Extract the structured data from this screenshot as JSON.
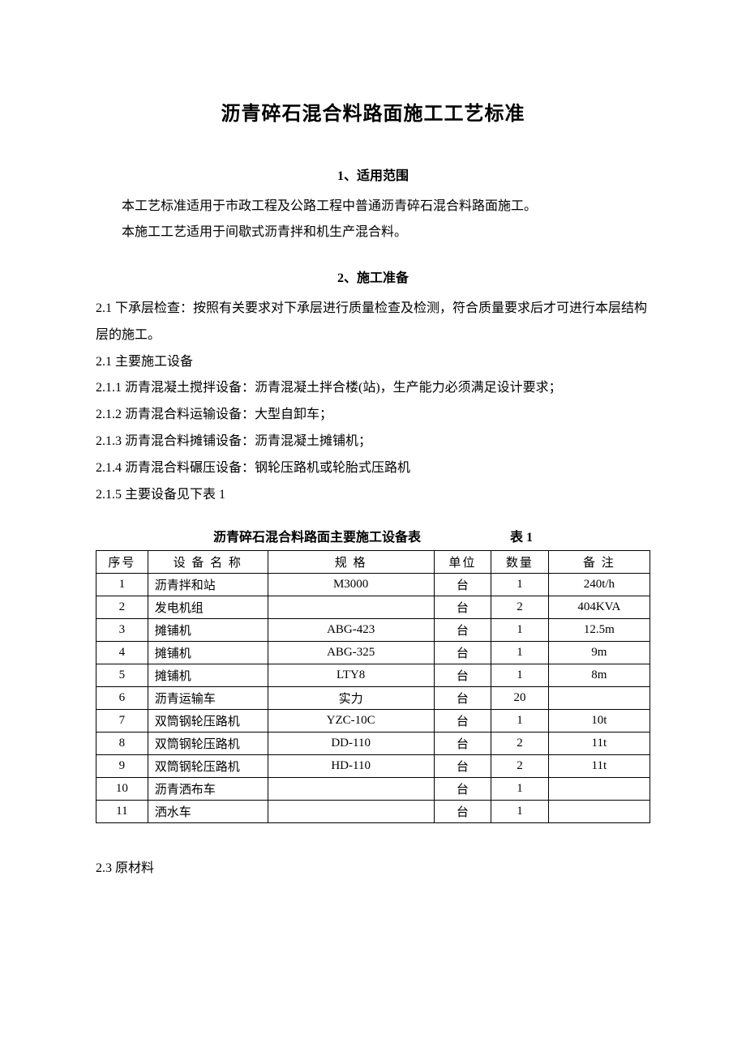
{
  "title": "沥青碎石混合料路面施工工艺标准",
  "section1": {
    "heading": "1、适用范围",
    "p1": "本工艺标准适用于市政工程及公路工程中普通沥青碎石混合料路面施工。",
    "p2": "本施工工艺适用于间歇式沥青拌和机生产混合料。"
  },
  "section2": {
    "heading": "2、施工准备",
    "items": {
      "i21a": "2.1 下承层检查：按照有关要求对下承层进行质量检查及检测，符合质量要求后才可进行本层结构层的施工。",
      "i21b": "2.1 主要施工设备",
      "i211": "2.1.1 沥青混凝土搅拌设备：沥青混凝土拌合楼(站)，生产能力必须满足设计要求；",
      "i212": "2.1.2 沥青混合料运输设备：大型自卸车；",
      "i213": "2.1.3 沥青混合料摊铺设备：沥青混凝土摊铺机；",
      "i214": "2.1.4 沥青混合料碾压设备：钢轮压路机或轮胎式压路机",
      "i215": "2.1.5 主要设备见下表 1"
    }
  },
  "table": {
    "caption": "沥青碎石混合料路面主要施工设备表",
    "caption_label": "表 1",
    "headers": {
      "seq": "序号",
      "name": "设 备 名 称",
      "spec": "规    格",
      "unit": "单位",
      "qty": "数量",
      "note": "备 注"
    },
    "rows": [
      {
        "seq": "1",
        "name": "沥青拌和站",
        "spec": "M3000",
        "unit": "台",
        "qty": "1",
        "note": "240t/h"
      },
      {
        "seq": "2",
        "name": "发电机组",
        "spec": "",
        "unit": "台",
        "qty": "2",
        "note": "404KVA"
      },
      {
        "seq": "3",
        "name": "摊铺机",
        "spec": "ABG-423",
        "unit": "台",
        "qty": "1",
        "note": "12.5m"
      },
      {
        "seq": "4",
        "name": "摊铺机",
        "spec": "ABG-325",
        "unit": "台",
        "qty": "1",
        "note": "9m"
      },
      {
        "seq": "5",
        "name": "摊铺机",
        "spec": "LTY8",
        "unit": "台",
        "qty": "1",
        "note": "8m"
      },
      {
        "seq": "6",
        "name": "沥青运输车",
        "spec": "实力",
        "unit": "台",
        "qty": "20",
        "note": ""
      },
      {
        "seq": "7",
        "name": "双筒钢轮压路机",
        "spec": "YZC-10C",
        "unit": "台",
        "qty": "1",
        "note": "10t"
      },
      {
        "seq": "8",
        "name": "双筒钢轮压路机",
        "spec": "DD-110",
        "unit": "台",
        "qty": "2",
        "note": "11t"
      },
      {
        "seq": "9",
        "name": "双筒钢轮压路机",
        "spec": "HD-110",
        "unit": "台",
        "qty": "2",
        "note": "11t"
      },
      {
        "seq": "10",
        "name": "沥青洒布车",
        "spec": "",
        "unit": "台",
        "qty": "1",
        "note": ""
      },
      {
        "seq": "11",
        "name": "洒水车",
        "spec": "",
        "unit": "台",
        "qty": "1",
        "note": ""
      }
    ]
  },
  "section23": "2.3 原材料"
}
